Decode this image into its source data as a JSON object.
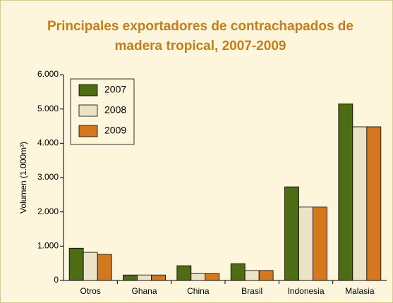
{
  "chart_data": {
    "type": "bar",
    "title": "Principales exportadores de contrachapados de madera tropical, 2007-2009",
    "y_label": "Volumen (1.000m³)",
    "categories": [
      "Otros",
      "Ghana",
      "China",
      "Brasil",
      "Indonesia",
      "Malasia"
    ],
    "series": [
      {
        "name": "2007",
        "color": "#4e6c13",
        "values": [
          940,
          160,
          430,
          490,
          2730,
          5150
        ]
      },
      {
        "name": "2008",
        "color": "#ece2c6",
        "values": [
          820,
          160,
          200,
          290,
          2140,
          4480
        ]
      },
      {
        "name": "2009",
        "color": "#d3781f",
        "values": [
          760,
          160,
          200,
          290,
          2140,
          4480
        ]
      }
    ],
    "ylim": [
      0,
      6000
    ],
    "yticks": [
      0,
      {
        "value": 1000,
        "label": "1.000"
      },
      {
        "value": 2000,
        "label": "2.000"
      },
      {
        "value": 3000,
        "label": "3.000"
      },
      {
        "value": 4000,
        "label": "4.000"
      },
      {
        "value": 5000,
        "label": "5.000"
      },
      {
        "value": 6000,
        "label": "6.000"
      }
    ],
    "legend": "top-left",
    "grid": false
  }
}
